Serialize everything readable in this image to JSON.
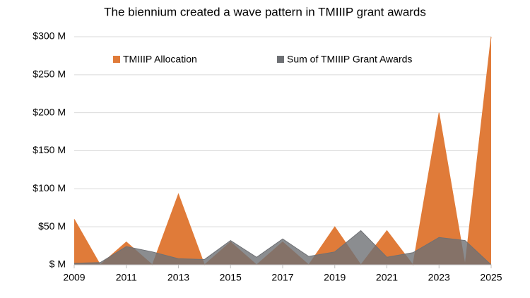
{
  "chart_data": {
    "type": "area",
    "title": "The biennium created a wave pattern in TMIIIP grant awards",
    "x": [
      2009,
      2010,
      2011,
      2012,
      2013,
      2014,
      2015,
      2016,
      2017,
      2018,
      2019,
      2020,
      2021,
      2022,
      2023,
      2024,
      2025
    ],
    "series": [
      {
        "name": "TMIIIP Allocation",
        "color": "#e07b39",
        "values": [
          60,
          0,
          30,
          0,
          93,
          0,
          30,
          0,
          30,
          0,
          50,
          0,
          45,
          0,
          200,
          0,
          300
        ]
      },
      {
        "name": "Sum of TMIIIP Grant Awards",
        "color": "#6e7074",
        "values": [
          2,
          3,
          24,
          17,
          8,
          7,
          32,
          10,
          34,
          11,
          17,
          45,
          10,
          16,
          36,
          32,
          0
        ]
      }
    ],
    "xlim": [
      2009,
      2025
    ],
    "xticks": [
      2009,
      2011,
      2013,
      2015,
      2017,
      2019,
      2021,
      2023,
      2025
    ],
    "ylim": [
      0,
      300
    ],
    "yticks": [
      {
        "value": 0,
        "label": "$ M"
      },
      {
        "value": 50,
        "label": "$50 M"
      },
      {
        "value": 100,
        "label": "$100 M"
      },
      {
        "value": 150,
        "label": "$150 M"
      },
      {
        "value": 200,
        "label": "$200 M"
      },
      {
        "value": 250,
        "label": "$250 M"
      },
      {
        "value": 300,
        "label": "$300 M"
      }
    ],
    "grid": true,
    "legend": "top"
  }
}
